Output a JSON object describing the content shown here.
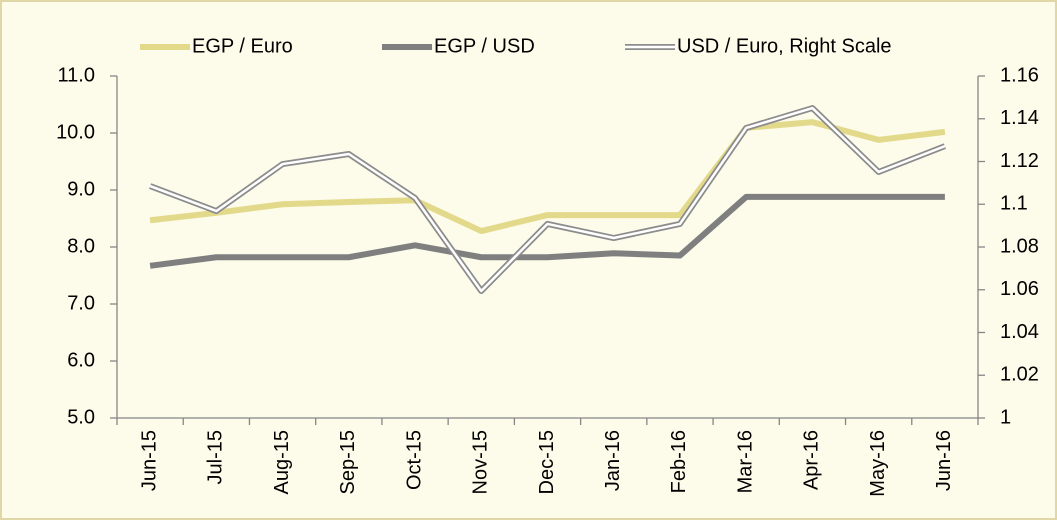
{
  "chart_data": {
    "type": "line",
    "categories": [
      "Jun-15",
      "Jul-15",
      "Aug-15",
      "Sep-15",
      "Oct-15",
      "Nov-15",
      "Dec-15",
      "Jan-16",
      "Feb-16",
      "Mar-16",
      "Apr-16",
      "May-16",
      "Jun-16"
    ],
    "series": [
      {
        "name": "EGP / Euro",
        "color": "#e3d98a",
        "values": [
          8.47,
          8.6,
          8.75,
          8.79,
          8.82,
          8.28,
          8.56,
          8.56,
          8.56,
          10.09,
          10.19,
          9.88,
          10.02
        ]
      },
      {
        "name": "EGP / USD",
        "color": "#7f7f7f",
        "values": [
          7.67,
          7.82,
          7.82,
          7.82,
          8.03,
          7.82,
          7.82,
          7.89,
          7.85,
          8.88,
          8.88,
          8.88,
          8.88
        ]
      },
      {
        "name": "USD / Euro,  Right Scale",
        "color": "#8c8c8c",
        "axis": "y2",
        "values": [
          1.1085,
          1.0968,
          1.1188,
          1.1235,
          1.1029,
          1.0594,
          1.0908,
          1.0842,
          1.0908,
          1.1357,
          1.145,
          1.1151,
          1.1272
        ]
      }
    ],
    "ylim": [
      5,
      11
    ],
    "yticks": [
      {
        "value": 5,
        "label": "5.0"
      },
      {
        "value": 6,
        "label": "6.0"
      },
      {
        "value": 7,
        "label": "7.0"
      },
      {
        "value": 8,
        "label": "8.0"
      },
      {
        "value": 9,
        "label": "9.0"
      },
      {
        "value": 10,
        "label": "10.0"
      },
      {
        "value": 11,
        "label": "11.0"
      }
    ],
    "y2lim": [
      1,
      1.16
    ],
    "y2ticks": [
      1,
      1.02,
      1.04,
      1.06,
      1.08,
      1.1,
      1.12,
      1.14,
      1.16
    ],
    "legend": "top"
  }
}
